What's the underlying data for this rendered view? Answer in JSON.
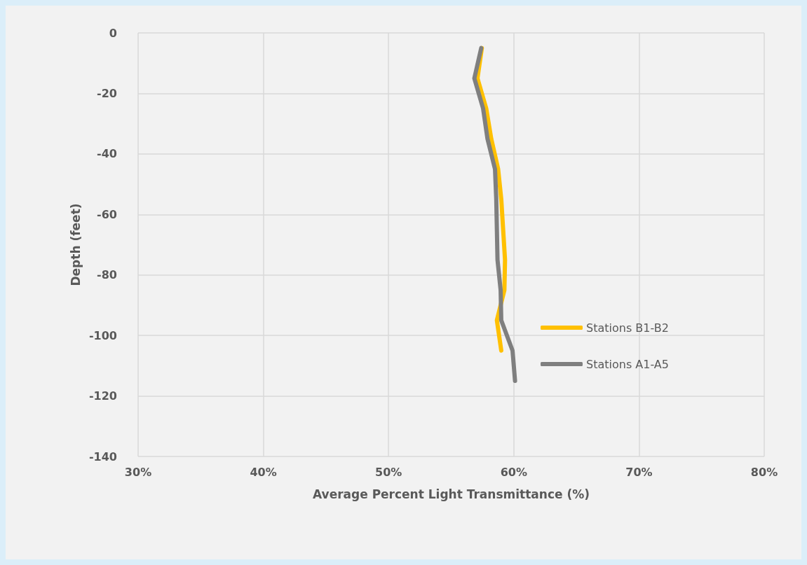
{
  "chart_data": {
    "type": "line",
    "xlabel": "Average Percent Light Transmittance (%)",
    "ylabel": "Depth (feet)",
    "xlim": [
      30,
      80
    ],
    "xticks": [
      {
        "value": 30,
        "label": "30%"
      },
      {
        "value": 40,
        "label": "40%"
      },
      {
        "value": 50,
        "label": "50%"
      },
      {
        "value": 60,
        "label": "60%"
      },
      {
        "value": 70,
        "label": "70%"
      },
      {
        "value": 80,
        "label": "80%"
      }
    ],
    "ylim": [
      -140,
      0
    ],
    "yticks": [
      -140,
      -120,
      -100,
      -80,
      -60,
      -40,
      -20,
      0
    ],
    "grid": true,
    "legend": "right",
    "marker": "none",
    "line_style": "solid",
    "series": [
      {
        "name": "Stations B1-B2",
        "color": "#ffc000",
        "x": [
          57.45,
          57.1,
          57.8,
          58.2,
          58.75,
          59.0,
          59.15,
          59.3,
          59.25,
          58.65,
          59.0
        ],
        "values": [
          -5,
          -15,
          -25,
          -35,
          -45,
          -55,
          -65,
          -75,
          -85,
          -95,
          -105
        ]
      },
      {
        "name": "Stations A1-A5",
        "color": "#7f7f7f",
        "x": [
          57.4,
          56.85,
          57.55,
          57.9,
          58.5,
          58.6,
          58.65,
          58.7,
          58.95,
          59.0,
          59.9,
          60.1
        ],
        "values": [
          -5,
          -15,
          -25,
          -35,
          -45,
          -55,
          -65,
          -75,
          -85,
          -95,
          -105,
          -115
        ]
      }
    ]
  }
}
